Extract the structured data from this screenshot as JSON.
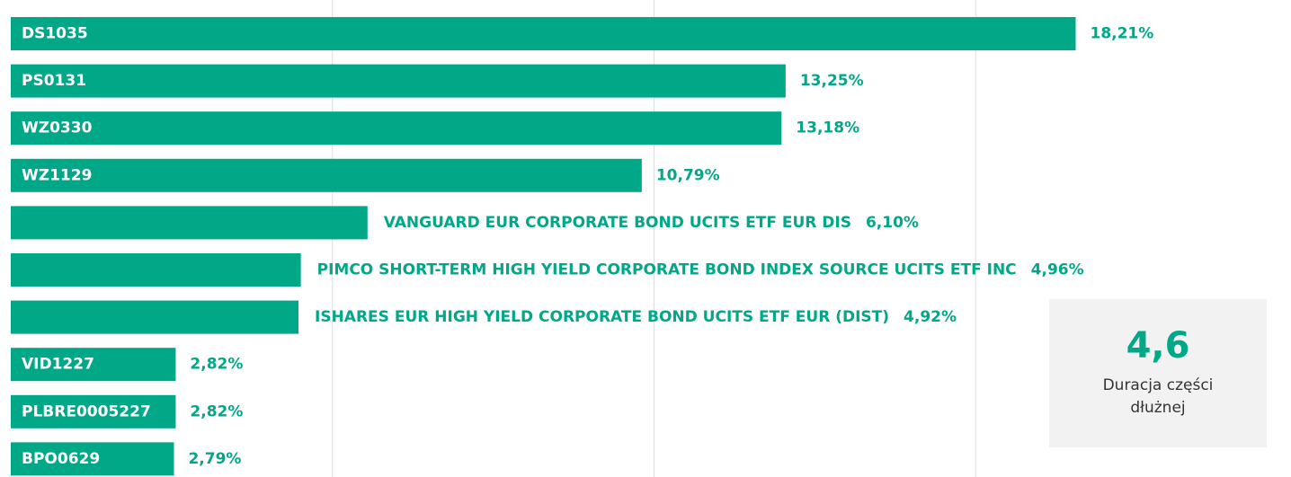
{
  "chart_data": {
    "type": "barh",
    "categories": [
      "DS1035",
      "PS0131",
      "WZ0330",
      "WZ1129",
      "VANGUARD EUR CORPORATE BOND UCITS ETF EUR DIS",
      "PIMCO SHORT-TERM HIGH YIELD CORPORATE BOND INDEX SOURCE UCITS ETF INC",
      "ISHARES EUR HIGH YIELD CORPORATE BOND UCITS ETF EUR (DIST)",
      "VID1227",
      "PLBRE0005227",
      "BPO0629"
    ],
    "values": [
      18.21,
      13.25,
      13.18,
      10.79,
      6.1,
      4.96,
      4.92,
      2.82,
      2.82,
      2.79
    ],
    "value_labels": [
      "18,21%",
      "13,25%",
      "13,18%",
      "10,79%",
      "6,10%",
      "4,96%",
      "4,92%",
      "2,82%",
      "2,82%",
      "2,79%"
    ],
    "color": "#00a887",
    "xlim": [
      0,
      21.8
    ],
    "xticks": [
      5.5,
      11,
      16.5
    ],
    "grid": true,
    "annotation": {
      "value": "4,6",
      "label": "Duracja części dłużnej"
    }
  }
}
